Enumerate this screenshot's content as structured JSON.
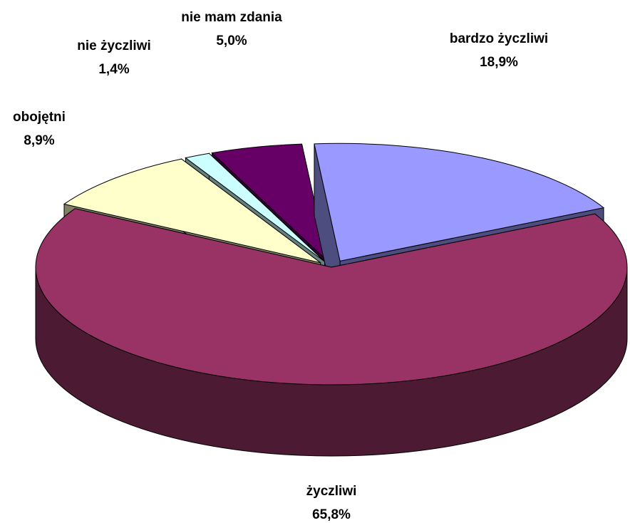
{
  "chart_data": {
    "type": "pie",
    "categories": [
      "bardzo życzliwi",
      "życzliwi",
      "obojętni",
      "nie życzliwi",
      "nie mam zdania"
    ],
    "values": [
      18.9,
      65.8,
      8.9,
      1.4,
      5.0
    ],
    "value_labels": [
      "18,9%",
      "65,8%",
      "8,9%",
      "1,4%",
      "5,0%"
    ],
    "colors": [
      "#9999ff",
      "#993366",
      "#ffffcc",
      "#ccffff",
      "#660066"
    ]
  }
}
